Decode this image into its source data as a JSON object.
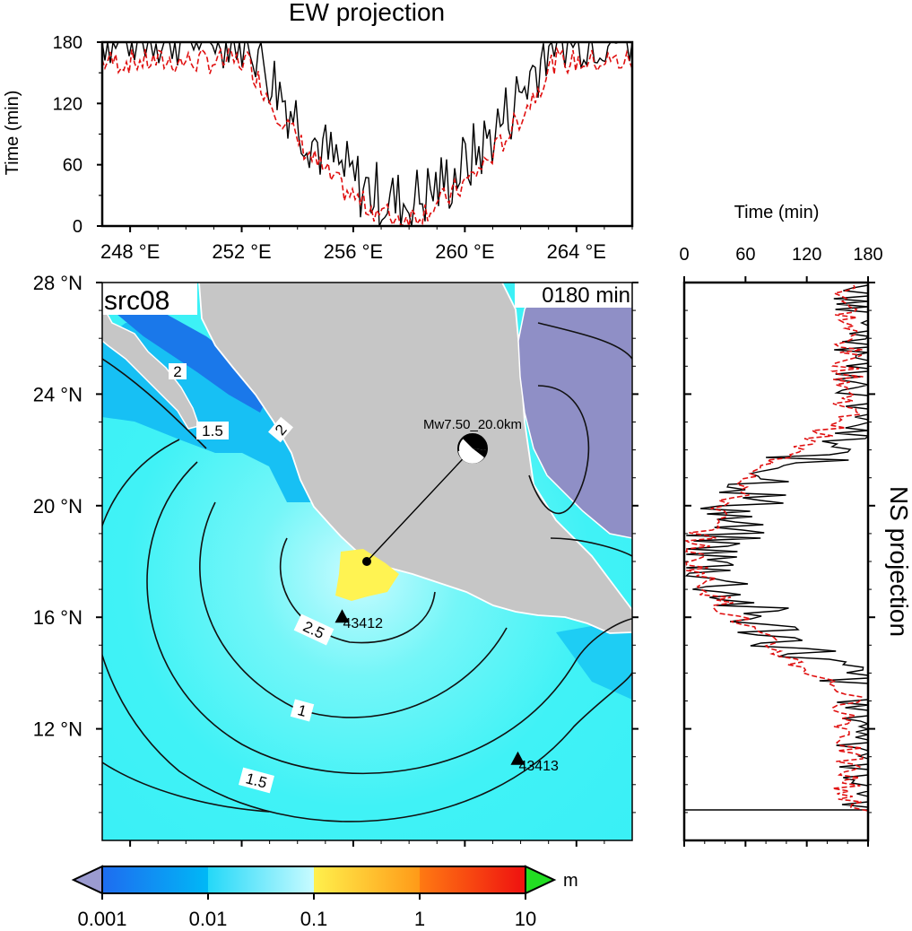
{
  "ew_panel": {
    "title": "EW projection",
    "ylabel": "Time (min)",
    "yticks": [
      "0",
      "60",
      "120",
      "180"
    ],
    "xticks": [
      "248 °E",
      "252 °E",
      "256 °E",
      "260 °E",
      "264 °E"
    ]
  },
  "ns_panel": {
    "title": "NS projection",
    "xlabel": "Time (min)",
    "xticks": [
      "0",
      "60",
      "120",
      "180"
    ]
  },
  "map": {
    "source_label": "src08",
    "time_label": "0180 min",
    "lat_ticks": [
      "28 °N",
      "24 °N",
      "20 °N",
      "16 °N",
      "12 °N"
    ],
    "event_label": "Mw7.50_20.0km",
    "stations": [
      {
        "id": "43412",
        "lon": 255.6,
        "lat": 16.0
      },
      {
        "id": "43413",
        "lon": 261.9,
        "lat": 10.9
      }
    ],
    "contour_labels": [
      "1.5",
      "2",
      "2",
      "2.5",
      "1",
      "1.5"
    ],
    "epicenter": {
      "lon": 257.7,
      "lat": 18.2
    },
    "extent": {
      "lon": [
        247.0,
        266.0
      ],
      "lat": [
        8.0,
        28.0
      ]
    }
  },
  "colorbar": {
    "unit": "m",
    "ticks": [
      "0.001",
      "0.01",
      "0.1",
      "1",
      "10"
    ],
    "colors": [
      "#1e6cf0",
      "#00b8f6",
      "#40f2f6",
      "#fff04c",
      "#ff7a12",
      "#ef1010"
    ],
    "under_color": "#9b9bd0",
    "over_color": "#22dd22"
  },
  "colors": {
    "land": "#c6c6c6",
    "gulf": "#8f8fc6",
    "ocean": "#3ff0f3",
    "near_coast": "#17c0f4",
    "source_zone": "#fff352",
    "observed_line": "#000000",
    "simulated_line": "#e01010"
  }
}
